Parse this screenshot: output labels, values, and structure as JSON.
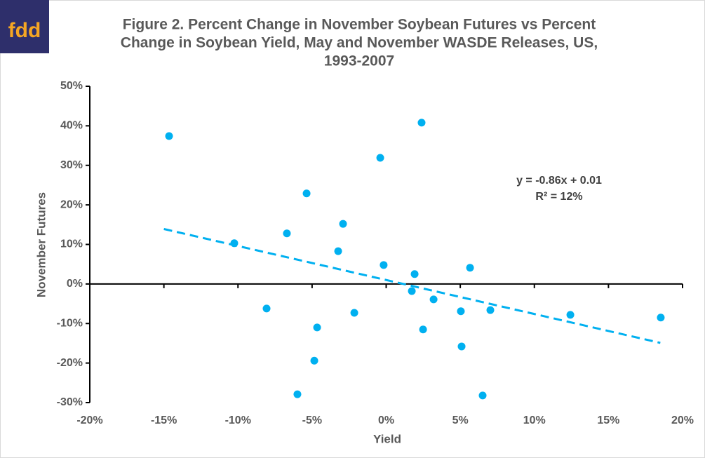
{
  "logo": "fdd",
  "chart_data": {
    "type": "scatter",
    "title": [
      "Figure 2.  Percent Change in November Soybean Futures vs Percent",
      "Change in Soybean Yield, May and November WASDE Releases, US,",
      "1993-2007"
    ],
    "x_label": "Yield",
    "y_label": "November Futures",
    "annotations": [
      "y = -0.86x + 0.01",
      "R² = 12%"
    ],
    "color": "#00b0f0",
    "x": [
      -14.65,
      -10.25,
      -8.07,
      -6.7,
      -5.37,
      -4.66,
      -4.85,
      -5.99,
      -3.24,
      -2.91,
      -2.15,
      -0.4,
      -0.17,
      2.39,
      1.92,
      1.73,
      2.49,
      3.2,
      5.04,
      5.09,
      5.66,
      7.03,
      6.51,
      12.43,
      18.53
    ],
    "values": [
      37.4,
      10.3,
      -6.2,
      12.8,
      22.9,
      -11.0,
      -19.4,
      -27.9,
      8.3,
      15.2,
      -7.3,
      31.9,
      4.8,
      40.8,
      2.5,
      -1.8,
      -11.5,
      -3.9,
      -6.9,
      -15.8,
      4.1,
      -6.6,
      -28.2,
      -7.8,
      -8.5
    ],
    "trendline": {
      "x": [
        -15,
        18.5
      ],
      "values": [
        13.9,
        -14.9
      ],
      "color": "#00b0f0"
    },
    "xlim": [
      -20,
      20
    ],
    "xticks": [
      {
        "value": -20,
        "label": "-20%"
      },
      {
        "value": -15,
        "label": "-15%"
      },
      {
        "value": -10,
        "label": "-10%"
      },
      {
        "value": -5,
        "label": "-5%"
      },
      {
        "value": 0,
        "label": "0%"
      },
      {
        "value": 5,
        "label": "5%"
      },
      {
        "value": 10,
        "label": "10%"
      },
      {
        "value": 15,
        "label": "15%"
      },
      {
        "value": 20,
        "label": "20%"
      }
    ],
    "ylim": [
      -30,
      50
    ],
    "yticks": [
      {
        "value": -30,
        "label": "-30%"
      },
      {
        "value": -20,
        "label": "-20%"
      },
      {
        "value": -10,
        "label": "-10%"
      },
      {
        "value": 0,
        "label": "0%"
      },
      {
        "value": 10,
        "label": "10%"
      },
      {
        "value": 20,
        "label": "20%"
      },
      {
        "value": 30,
        "label": "30%"
      },
      {
        "value": 40,
        "label": "40%"
      },
      {
        "value": 50,
        "label": "50%"
      }
    ]
  }
}
